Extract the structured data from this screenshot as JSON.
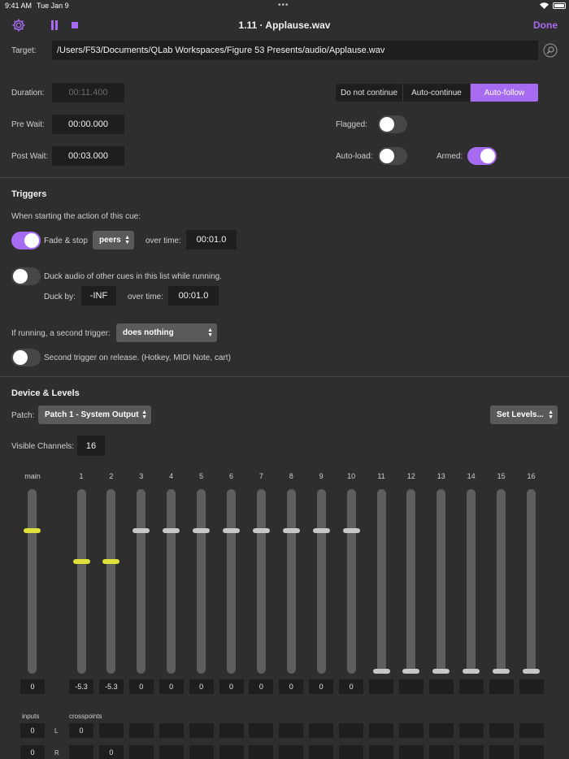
{
  "status_bar": {
    "time": "9:41 AM",
    "date": "Tue Jan 9",
    "dots": "•••"
  },
  "header": {
    "settings_icon": "gear-icon",
    "title": "1.11 · Applause.wav",
    "done_label": "Done",
    "accent": "#a66bf0"
  },
  "target": {
    "label": "Target:",
    "value": "/Users/F53/Documents/QLab Workspaces/Figure 53 Presents/audio/Applause.wav",
    "icon": "search-icon"
  },
  "timing": {
    "duration_label": "Duration:",
    "duration_value": "00:11.400",
    "prewait_label": "Pre Wait:",
    "prewait_value": "00:00.000",
    "postwait_label": "Post Wait:",
    "postwait_value": "00:03.000"
  },
  "continue_mode": {
    "options": [
      "Do not continue",
      "Auto-continue",
      "Auto-follow"
    ],
    "selected": "Auto-follow"
  },
  "flags": {
    "flagged_label": "Flagged:",
    "flagged_on": false,
    "autoload_label": "Auto-load:",
    "autoload_on": false,
    "armed_label": "Armed:",
    "armed_on": true
  },
  "triggers": {
    "heading": "Triggers",
    "when_starting": "When starting the action of this cue:",
    "fade_stop_on": true,
    "fade_stop_label": "Fade & stop",
    "fade_target": "peers",
    "over_time_label": "over time:",
    "fade_time": "00:01.0",
    "duck_on": false,
    "duck_label": "Duck audio of other cues in this list while running.",
    "duck_by_label": "Duck by:",
    "duck_by_value": "-INF",
    "duck_over_time_label": "over time:",
    "duck_time": "00:01.0",
    "second_trigger_label": "If running, a second trigger:",
    "second_trigger_value": "does nothing",
    "second_on_release_on": false,
    "second_on_release_label": "Second trigger on release. (Hotkey, MIDI Note, cart)"
  },
  "device_levels": {
    "heading": "Device & Levels",
    "patch_label": "Patch:",
    "patch_value": "Patch 1 - System Output",
    "set_levels_label": "Set Levels...",
    "visible_channels_label": "Visible Channels:",
    "visible_channels_value": "16",
    "main_label": "main",
    "main_value": "0",
    "channels": [
      {
        "label": "1",
        "value": "-5.3",
        "level": "yellow"
      },
      {
        "label": "2",
        "value": "-5.3",
        "level": "yellow"
      },
      {
        "label": "3",
        "value": "0",
        "level": "zero"
      },
      {
        "label": "4",
        "value": "0",
        "level": "zero"
      },
      {
        "label": "5",
        "value": "0",
        "level": "zero"
      },
      {
        "label": "6",
        "value": "0",
        "level": "zero"
      },
      {
        "label": "7",
        "value": "0",
        "level": "zero"
      },
      {
        "label": "8",
        "value": "0",
        "level": "zero"
      },
      {
        "label": "9",
        "value": "0",
        "level": "zero"
      },
      {
        "label": "10",
        "value": "0",
        "level": "zero"
      },
      {
        "label": "11",
        "value": "",
        "level": "min"
      },
      {
        "label": "12",
        "value": "",
        "level": "min"
      },
      {
        "label": "13",
        "value": "",
        "level": "min"
      },
      {
        "label": "14",
        "value": "",
        "level": "min"
      },
      {
        "label": "15",
        "value": "",
        "level": "min"
      },
      {
        "label": "16",
        "value": "",
        "level": "min"
      }
    ],
    "inputs_label": "inputs",
    "crosspoints_label": "crosspoints",
    "rows": [
      {
        "input": "0",
        "side": "L",
        "crosspoints": [
          "0",
          "",
          "",
          "",
          "",
          "",
          "",
          "",
          "",
          "",
          "",
          "",
          "",
          "",
          "",
          ""
        ]
      },
      {
        "input": "0",
        "side": "R",
        "crosspoints": [
          "",
          "0",
          "",
          "",
          "",
          "",
          "",
          "",
          "",
          "",
          "",
          "",
          "",
          "",
          "",
          ""
        ]
      }
    ]
  }
}
